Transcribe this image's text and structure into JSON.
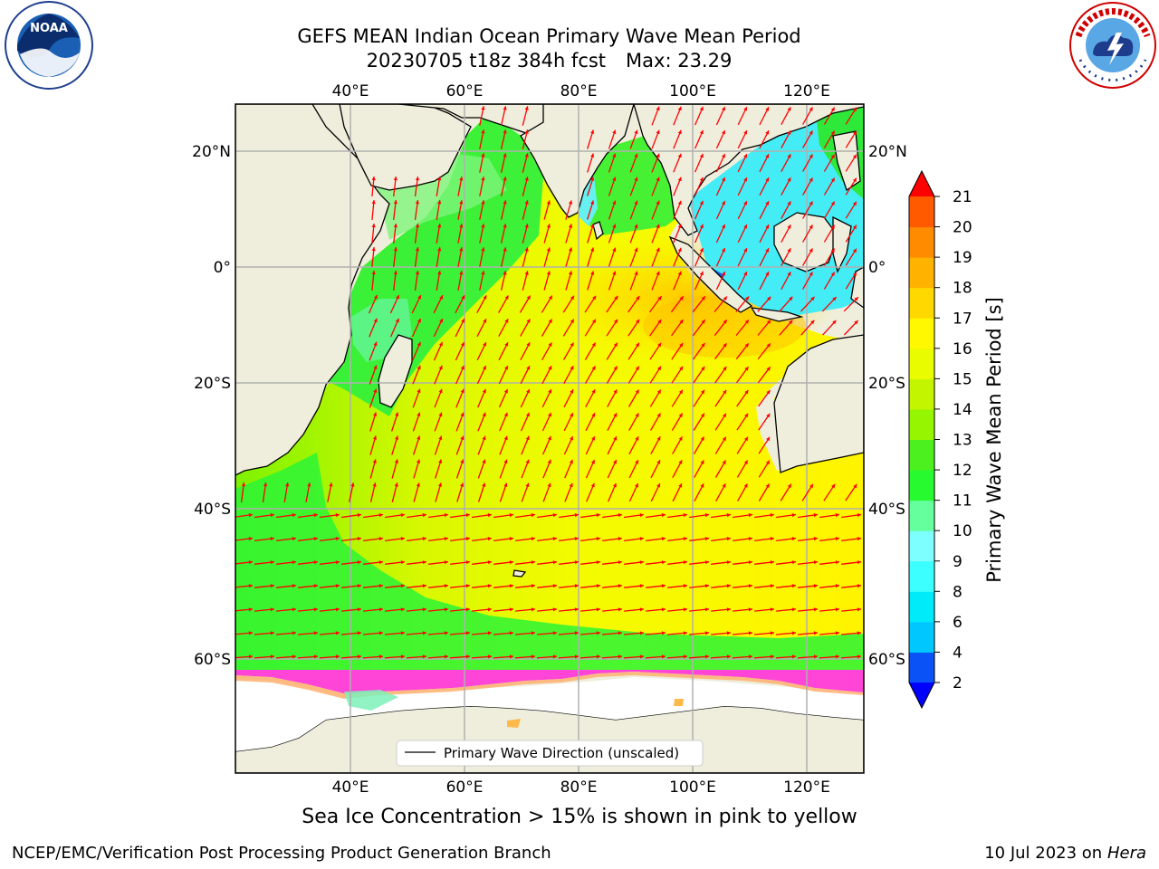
{
  "header": {
    "title_line1": "GEFS MEAN Indian Ocean Primary Wave Mean Period",
    "title_date": "20230705 t18z 384h fcst",
    "title_max": "Max: 23.29"
  },
  "logos": {
    "left": {
      "label": "NOAA",
      "ring_text": "NATIONAL OCEANIC AND ATMOSPHERIC ADMINISTRATION · U.S. DEPARTMENT OF COMMERCE"
    },
    "right": {
      "ring_text": "NATIONAL WEATHER SERVICE"
    }
  },
  "map": {
    "lon_labels": [
      "40°E",
      "60°E",
      "80°E",
      "100°E",
      "120°E"
    ],
    "lat_labels": [
      "20°N",
      "0°",
      "20°S",
      "40°S",
      "60°S"
    ],
    "legend_label": "Primary Wave Direction (unscaled)",
    "colors": {
      "land": "#efeedd",
      "ice_free": "#ffffff",
      "arrow": "#ff0000",
      "grid": "#b0b0b0"
    }
  },
  "colorbar": {
    "label": "Primary Wave Mean Period [s]",
    "ticks": [
      "2",
      "4",
      "6",
      "8",
      "9",
      "10",
      "11",
      "12",
      "13",
      "14",
      "15",
      "16",
      "17",
      "18",
      "19",
      "20",
      "21"
    ],
    "colors": [
      "#0a52f5",
      "#00c8ff",
      "#00ebfa",
      "#3cffff",
      "#7effff",
      "#66ff9d",
      "#27fb30",
      "#4cf01e",
      "#96f500",
      "#c3f500",
      "#eafc00",
      "#fff800",
      "#ffd800",
      "#ffb300",
      "#ff8c00",
      "#ff5a00",
      "#ff2a00"
    ],
    "under_color": "#0000ff",
    "over_color": "#ff0000"
  },
  "caption": "Sea Ice Concentration > 15% is shown in pink to yellow",
  "footer": {
    "left": "NCEP/EMC/Verification Post Processing Product Generation Branch",
    "right_date": "10 Jul 2023 on ",
    "right_host": "Hera"
  }
}
